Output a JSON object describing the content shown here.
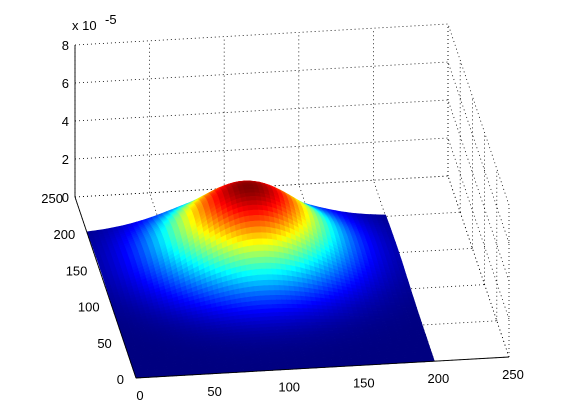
{
  "chart_data": {
    "type": "surface",
    "title": "",
    "xlabel": "",
    "ylabel": "",
    "zlabel": "",
    "x_ticks": [
      "0",
      "50",
      "100",
      "150",
      "200",
      "250"
    ],
    "y_ticks": [
      "0",
      "50",
      "100",
      "150",
      "200",
      "250"
    ],
    "z_ticks": [
      "0",
      "2",
      "4",
      "6",
      "8"
    ],
    "z_exponent_label": "x 10",
    "z_exponent_power": "-5",
    "xlim": [
      0,
      250
    ],
    "ylim": [
      0,
      250
    ],
    "zlim": [
      0,
      8e-05
    ],
    "grid": true,
    "colormap": "jet",
    "surface": {
      "x_range": [
        0,
        200
      ],
      "y_range": [
        0,
        200
      ],
      "peak_x": 100,
      "peak_y": 150,
      "peak_z": 3.9e-05,
      "base_z": 0.0
    }
  }
}
